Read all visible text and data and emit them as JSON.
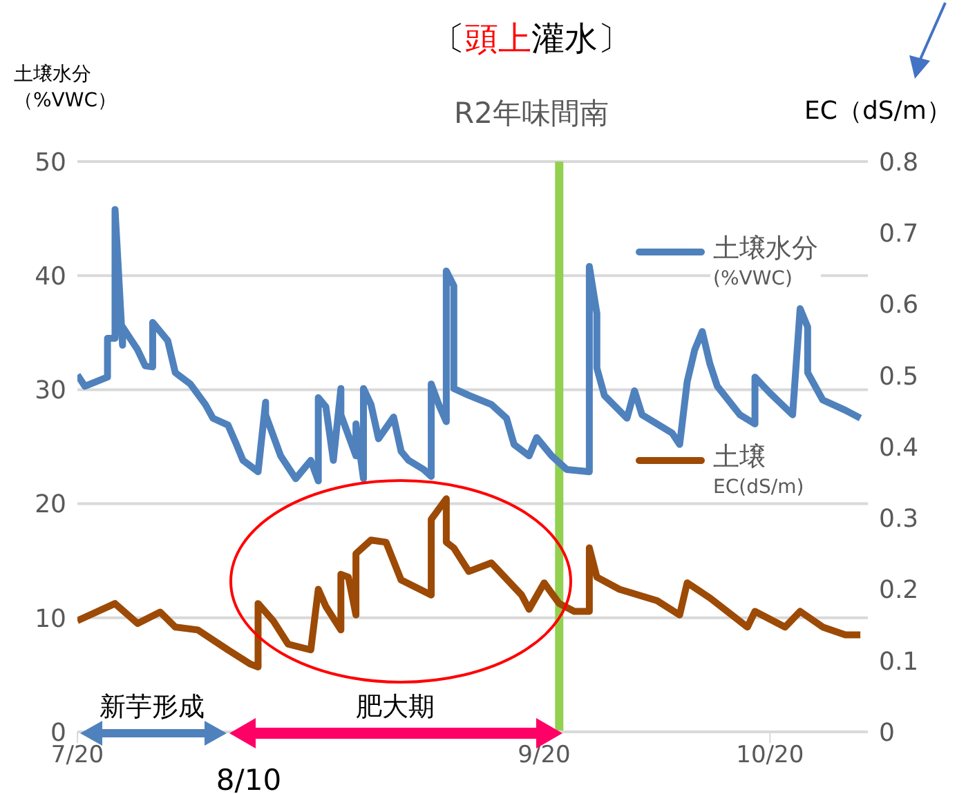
{
  "chart_data": {
    "type": "line",
    "title": "〔頭上灌水〕",
    "subtitle": "R2年味間南",
    "ylabel": "土壌水分（%VWC）",
    "y2label": "EC（dS/m）",
    "xlim": [
      "--07-20",
      "--11-02"
    ],
    "xticks": [
      {
        "value": "--07-20",
        "label": "7/20"
      },
      {
        "value": "--09-20",
        "label": "9/20"
      },
      {
        "value": "--10-20",
        "label": "10/20"
      }
    ],
    "ylim": [
      0,
      50
    ],
    "yticks": [
      0,
      10,
      20,
      30,
      40,
      50
    ],
    "y2lim": [
      0,
      0.8
    ],
    "y2ticks": [
      0,
      0.1,
      0.2,
      0.3,
      0.4,
      0.5,
      0.6,
      0.7,
      0.8
    ],
    "grid": "y",
    "legend": "right",
    "line_style": "solid",
    "ref_lines": [
      {
        "axis": "x",
        "value": "--09-22",
        "color": "#92d050"
      }
    ],
    "annotations": [
      "新芋形成",
      "肥大期",
      "8/10"
    ],
    "series": [
      {
        "name": "土壌水分\n(%VWC)",
        "color": "#4f81bd",
        "x": [
          "--07-20",
          "--07-21",
          "--07-24",
          "--07-24",
          "--07-25",
          "--07-25",
          "--07-26",
          "--07-26",
          "--07-28",
          "--07-29",
          "--07-30",
          "--07-30",
          "--08-01",
          "--08-02",
          "--08-04",
          "--08-06",
          "--08-07",
          "--08-09",
          "--08-10",
          "--08-11",
          "--08-13",
          "--08-14",
          "--08-14",
          "--08-15",
          "--08-16",
          "--08-18",
          "--08-20",
          "--08-21",
          "--08-21",
          "--08-22",
          "--08-23",
          "--08-24",
          "--08-24",
          "--08-26",
          "--08-26",
          "--08-27",
          "--08-27",
          "--08-28",
          "--08-29",
          "--08-31",
          "--09-01",
          "--09-02",
          "--09-04",
          "--09-05",
          "--09-05",
          "--09-06",
          "--09-07",
          "--09-07",
          "--09-08",
          "--09-08",
          "--09-10",
          "--09-13",
          "--09-15",
          "--09-16",
          "--09-18",
          "--09-19",
          "--09-21",
          "--09-23",
          "--09-26",
          "--09-26",
          "--09-27",
          "--09-27",
          "--09-28",
          "--10-01",
          "--10-02",
          "--10-03",
          "--10-07",
          "--10-08",
          "--10-09",
          "--10-10",
          "--10-11",
          "--10-12",
          "--10-13",
          "--10-16",
          "--10-18",
          "--10-18",
          "--10-20",
          "--10-23",
          "--10-24",
          "--10-25",
          "--10-25",
          "--10-27",
          "--10-30",
          "--11-01"
        ],
        "values": [
          31.3,
          30.3,
          31.1,
          34.5,
          34.5,
          45.8,
          33.9,
          35.5,
          33.5,
          32.1,
          32.0,
          35.9,
          34.3,
          31.5,
          30.5,
          28.7,
          27.5,
          26.9,
          25.4,
          23.8,
          22.8,
          28.9,
          27.8,
          26.0,
          24.2,
          22.2,
          23.8,
          22.0,
          29.3,
          28.5,
          23.8,
          30.1,
          27.8,
          24.2,
          27.0,
          22.2,
          30.1,
          28.7,
          25.7,
          27.6,
          24.6,
          23.8,
          23.0,
          22.4,
          30.5,
          28.7,
          27.2,
          40.4,
          39.1,
          30.1,
          29.5,
          28.7,
          27.5,
          25.2,
          24.2,
          25.8,
          24.2,
          23.0,
          22.8,
          40.8,
          36.7,
          31.9,
          29.5,
          27.5,
          29.9,
          27.8,
          26.2,
          25.2,
          30.7,
          33.5,
          35.1,
          32.3,
          30.3,
          27.8,
          27.0,
          31.1,
          29.7,
          27.8,
          37.1,
          35.5,
          31.5,
          29.1,
          28.2,
          27.5
        ]
      },
      {
        "name": "土壌\nEC(dS/m)",
        "color": "#9c4a06",
        "axis": "y2",
        "x": [
          "--07-20",
          "--07-25",
          "--07-28",
          "--07-31",
          "--08-02",
          "--08-05",
          "--08-09",
          "--08-12",
          "--08-13",
          "--08-13",
          "--08-15",
          "--08-17",
          "--08-20",
          "--08-21",
          "--08-22",
          "--08-24",
          "--08-24",
          "--08-25",
          "--08-26",
          "--08-26",
          "--08-28",
          "--08-30",
          "--09-01",
          "--09-05",
          "--09-05",
          "--09-07",
          "--09-07",
          "--09-08",
          "--09-10",
          "--09-13",
          "--09-17",
          "--09-18",
          "--09-20",
          "--09-22",
          "--09-24",
          "--09-26",
          "--09-26",
          "--09-27",
          "--09-30",
          "--10-05",
          "--10-08",
          "--10-09",
          "--10-12",
          "--10-17",
          "--10-18",
          "--10-22",
          "--10-24",
          "--10-27",
          "--10-30",
          "--11-01"
        ],
        "values": [
          0.156,
          0.18,
          0.152,
          0.168,
          0.147,
          0.143,
          0.115,
          0.095,
          0.091,
          0.18,
          0.156,
          0.123,
          0.115,
          0.2,
          0.176,
          0.143,
          0.221,
          0.217,
          0.164,
          0.25,
          0.269,
          0.266,
          0.213,
          0.192,
          0.298,
          0.327,
          0.266,
          0.258,
          0.225,
          0.237,
          0.192,
          0.172,
          0.209,
          0.18,
          0.169,
          0.169,
          0.258,
          0.217,
          0.2,
          0.184,
          0.164,
          0.209,
          0.188,
          0.147,
          0.169,
          0.147,
          0.169,
          0.147,
          0.136,
          0.136
        ]
      }
    ]
  }
}
